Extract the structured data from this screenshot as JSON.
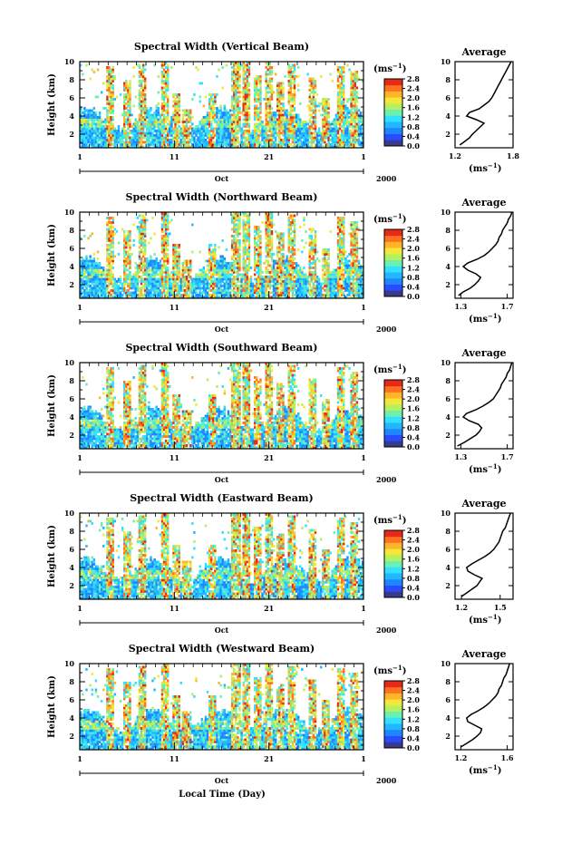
{
  "figure": {
    "xaxis_label": "Local Time (Day)",
    "month_label": "Oct",
    "year_label": "2000",
    "colorbar_unit": "(ms",
    "unit_exp": "−1",
    "avg_title": "Average",
    "avg_unit": "(ms",
    "ylabel": "Height (km)"
  },
  "colors": {
    "scale": [
      "#3a3a8c",
      "#2a4cff",
      "#1f86ff",
      "#22b7ff",
      "#32e0ff",
      "#6cf0b0",
      "#b5f060",
      "#f2e83a",
      "#ffb52a",
      "#ff7020",
      "#e62a18"
    ],
    "background": "#ffffff",
    "ink": "#000000"
  },
  "chart_data": [
    {
      "type": "heatmap",
      "title": "Spectral Width (Vertical Beam)",
      "ylabel": "Height (km)",
      "ylim": [
        0.5,
        10
      ],
      "yticks": [
        "2",
        "4",
        "6",
        "8",
        "10"
      ],
      "xlim": [
        1,
        31
      ],
      "xticks": [
        "1",
        "11",
        "21",
        "1"
      ],
      "colorbar": {
        "ticks": [
          "0.0",
          "0.4",
          "0.8",
          "1.2",
          "1.6",
          "2.0",
          "2.4",
          "2.8"
        ],
        "range": [
          0,
          2.8
        ]
      },
      "average": {
        "xticks": [
          "1.2",
          "1.8"
        ],
        "xlim": [
          1.2,
          1.8
        ],
        "profile": [
          [
            1.25,
            0.8
          ],
          [
            1.3,
            1.2
          ],
          [
            1.35,
            1.6
          ],
          [
            1.38,
            2.0
          ],
          [
            1.42,
            2.4
          ],
          [
            1.46,
            2.8
          ],
          [
            1.5,
            3.2
          ],
          [
            1.42,
            3.6
          ],
          [
            1.32,
            4.0
          ],
          [
            1.35,
            4.4
          ],
          [
            1.45,
            4.8
          ],
          [
            1.5,
            5.2
          ],
          [
            1.55,
            5.6
          ],
          [
            1.58,
            6.0
          ],
          [
            1.6,
            6.4
          ],
          [
            1.62,
            6.8
          ],
          [
            1.64,
            7.2
          ],
          [
            1.66,
            7.6
          ],
          [
            1.68,
            8.0
          ],
          [
            1.7,
            8.4
          ],
          [
            1.72,
            8.8
          ],
          [
            1.74,
            9.2
          ],
          [
            1.76,
            9.6
          ],
          [
            1.78,
            10.0
          ]
        ]
      }
    },
    {
      "type": "heatmap",
      "title": "Spectral Width (Northward Beam)",
      "ylabel": "Height (km)",
      "ylim": [
        0.5,
        10
      ],
      "yticks": [
        "2",
        "4",
        "6",
        "8",
        "10"
      ],
      "xlim": [
        1,
        31
      ],
      "xticks": [
        "1",
        "11",
        "21",
        "1"
      ],
      "colorbar": {
        "ticks": [
          "0.0",
          "0.4",
          "0.8",
          "1.2",
          "1.6",
          "2.0",
          "2.4",
          "2.8"
        ],
        "range": [
          0,
          2.8
        ]
      },
      "average": {
        "xticks": [
          "1.3",
          "1.7"
        ],
        "xlim": [
          1.25,
          1.75
        ],
        "profile": [
          [
            1.28,
            0.8
          ],
          [
            1.32,
            1.2
          ],
          [
            1.38,
            1.6
          ],
          [
            1.42,
            2.0
          ],
          [
            1.45,
            2.4
          ],
          [
            1.47,
            2.8
          ],
          [
            1.43,
            3.2
          ],
          [
            1.36,
            3.6
          ],
          [
            1.32,
            4.0
          ],
          [
            1.36,
            4.4
          ],
          [
            1.44,
            4.8
          ],
          [
            1.5,
            5.2
          ],
          [
            1.54,
            5.6
          ],
          [
            1.57,
            6.0
          ],
          [
            1.6,
            6.4
          ],
          [
            1.62,
            6.8
          ],
          [
            1.63,
            7.2
          ],
          [
            1.65,
            7.6
          ],
          [
            1.66,
            8.0
          ],
          [
            1.68,
            8.4
          ],
          [
            1.7,
            8.8
          ],
          [
            1.71,
            9.2
          ],
          [
            1.73,
            9.6
          ],
          [
            1.74,
            10.0
          ]
        ]
      }
    },
    {
      "type": "heatmap",
      "title": "Spectral Width (Southward Beam)",
      "ylabel": "Height (km)",
      "ylim": [
        0.5,
        10
      ],
      "yticks": [
        "2",
        "4",
        "6",
        "8",
        "10"
      ],
      "xlim": [
        1,
        31
      ],
      "xticks": [
        "1",
        "11",
        "21",
        "1"
      ],
      "colorbar": {
        "ticks": [
          "0.0",
          "0.4",
          "0.8",
          "1.2",
          "1.6",
          "2.0",
          "2.4",
          "2.8"
        ],
        "range": [
          0,
          2.8
        ]
      },
      "average": {
        "xticks": [
          "1.3",
          "1.7"
        ],
        "xlim": [
          1.25,
          1.75
        ],
        "profile": [
          [
            1.27,
            0.8
          ],
          [
            1.33,
            1.2
          ],
          [
            1.38,
            1.6
          ],
          [
            1.43,
            2.0
          ],
          [
            1.46,
            2.4
          ],
          [
            1.48,
            2.8
          ],
          [
            1.45,
            3.2
          ],
          [
            1.37,
            3.6
          ],
          [
            1.32,
            4.0
          ],
          [
            1.35,
            4.4
          ],
          [
            1.43,
            4.8
          ],
          [
            1.49,
            5.2
          ],
          [
            1.54,
            5.6
          ],
          [
            1.58,
            6.0
          ],
          [
            1.6,
            6.4
          ],
          [
            1.62,
            6.8
          ],
          [
            1.64,
            7.2
          ],
          [
            1.65,
            7.6
          ],
          [
            1.67,
            8.0
          ],
          [
            1.69,
            8.4
          ],
          [
            1.7,
            8.8
          ],
          [
            1.72,
            9.2
          ],
          [
            1.73,
            9.6
          ],
          [
            1.74,
            10.0
          ]
        ]
      }
    },
    {
      "type": "heatmap",
      "title": "Spectral Width (Eastward Beam)",
      "ylabel": "Height (km)",
      "ylim": [
        0.5,
        10
      ],
      "yticks": [
        "2",
        "4",
        "6",
        "8",
        "10"
      ],
      "xlim": [
        1,
        31
      ],
      "xticks": [
        "1",
        "11",
        "21",
        "1"
      ],
      "colorbar": {
        "ticks": [
          "0.0",
          "0.4",
          "0.8",
          "1.2",
          "1.6",
          "2.0",
          "2.4",
          "2.8"
        ],
        "range": [
          0,
          2.8
        ]
      },
      "average": {
        "xticks": [
          "1.2",
          "1.5"
        ],
        "xlim": [
          1.15,
          1.6
        ],
        "profile": [
          [
            1.2,
            0.8
          ],
          [
            1.24,
            1.2
          ],
          [
            1.28,
            1.6
          ],
          [
            1.32,
            2.0
          ],
          [
            1.34,
            2.4
          ],
          [
            1.36,
            2.8
          ],
          [
            1.3,
            3.2
          ],
          [
            1.25,
            3.6
          ],
          [
            1.24,
            4.0
          ],
          [
            1.28,
            4.4
          ],
          [
            1.33,
            4.8
          ],
          [
            1.38,
            5.2
          ],
          [
            1.42,
            5.6
          ],
          [
            1.45,
            6.0
          ],
          [
            1.47,
            6.4
          ],
          [
            1.49,
            6.8
          ],
          [
            1.5,
            7.2
          ],
          [
            1.51,
            7.6
          ],
          [
            1.52,
            8.0
          ],
          [
            1.54,
            8.4
          ],
          [
            1.55,
            8.8
          ],
          [
            1.56,
            9.2
          ],
          [
            1.57,
            9.6
          ],
          [
            1.58,
            10.0
          ]
        ]
      }
    },
    {
      "type": "heatmap",
      "title": "Spectral Width (Westward Beam)",
      "ylabel": "Height (km)",
      "ylim": [
        0.5,
        10
      ],
      "yticks": [
        "2",
        "4",
        "6",
        "8",
        "10"
      ],
      "xlim": [
        1,
        31
      ],
      "xticks": [
        "1",
        "11",
        "21",
        "1"
      ],
      "colorbar": {
        "ticks": [
          "0.0",
          "0.4",
          "0.8",
          "1.2",
          "1.6",
          "2.0",
          "2.4",
          "2.8"
        ],
        "range": [
          0,
          2.8
        ]
      },
      "average": {
        "xticks": [
          "1.2",
          "1.6"
        ],
        "xlim": [
          1.15,
          1.65
        ],
        "profile": [
          [
            1.2,
            0.8
          ],
          [
            1.25,
            1.2
          ],
          [
            1.3,
            1.6
          ],
          [
            1.34,
            2.0
          ],
          [
            1.37,
            2.4
          ],
          [
            1.38,
            2.8
          ],
          [
            1.32,
            3.2
          ],
          [
            1.26,
            3.6
          ],
          [
            1.25,
            4.0
          ],
          [
            1.29,
            4.4
          ],
          [
            1.35,
            4.8
          ],
          [
            1.4,
            5.2
          ],
          [
            1.44,
            5.6
          ],
          [
            1.47,
            6.0
          ],
          [
            1.5,
            6.4
          ],
          [
            1.52,
            6.8
          ],
          [
            1.53,
            7.2
          ],
          [
            1.55,
            7.6
          ],
          [
            1.56,
            8.0
          ],
          [
            1.57,
            8.4
          ],
          [
            1.59,
            8.8
          ],
          [
            1.6,
            9.2
          ],
          [
            1.61,
            9.6
          ],
          [
            1.62,
            10.0
          ]
        ]
      }
    }
  ]
}
